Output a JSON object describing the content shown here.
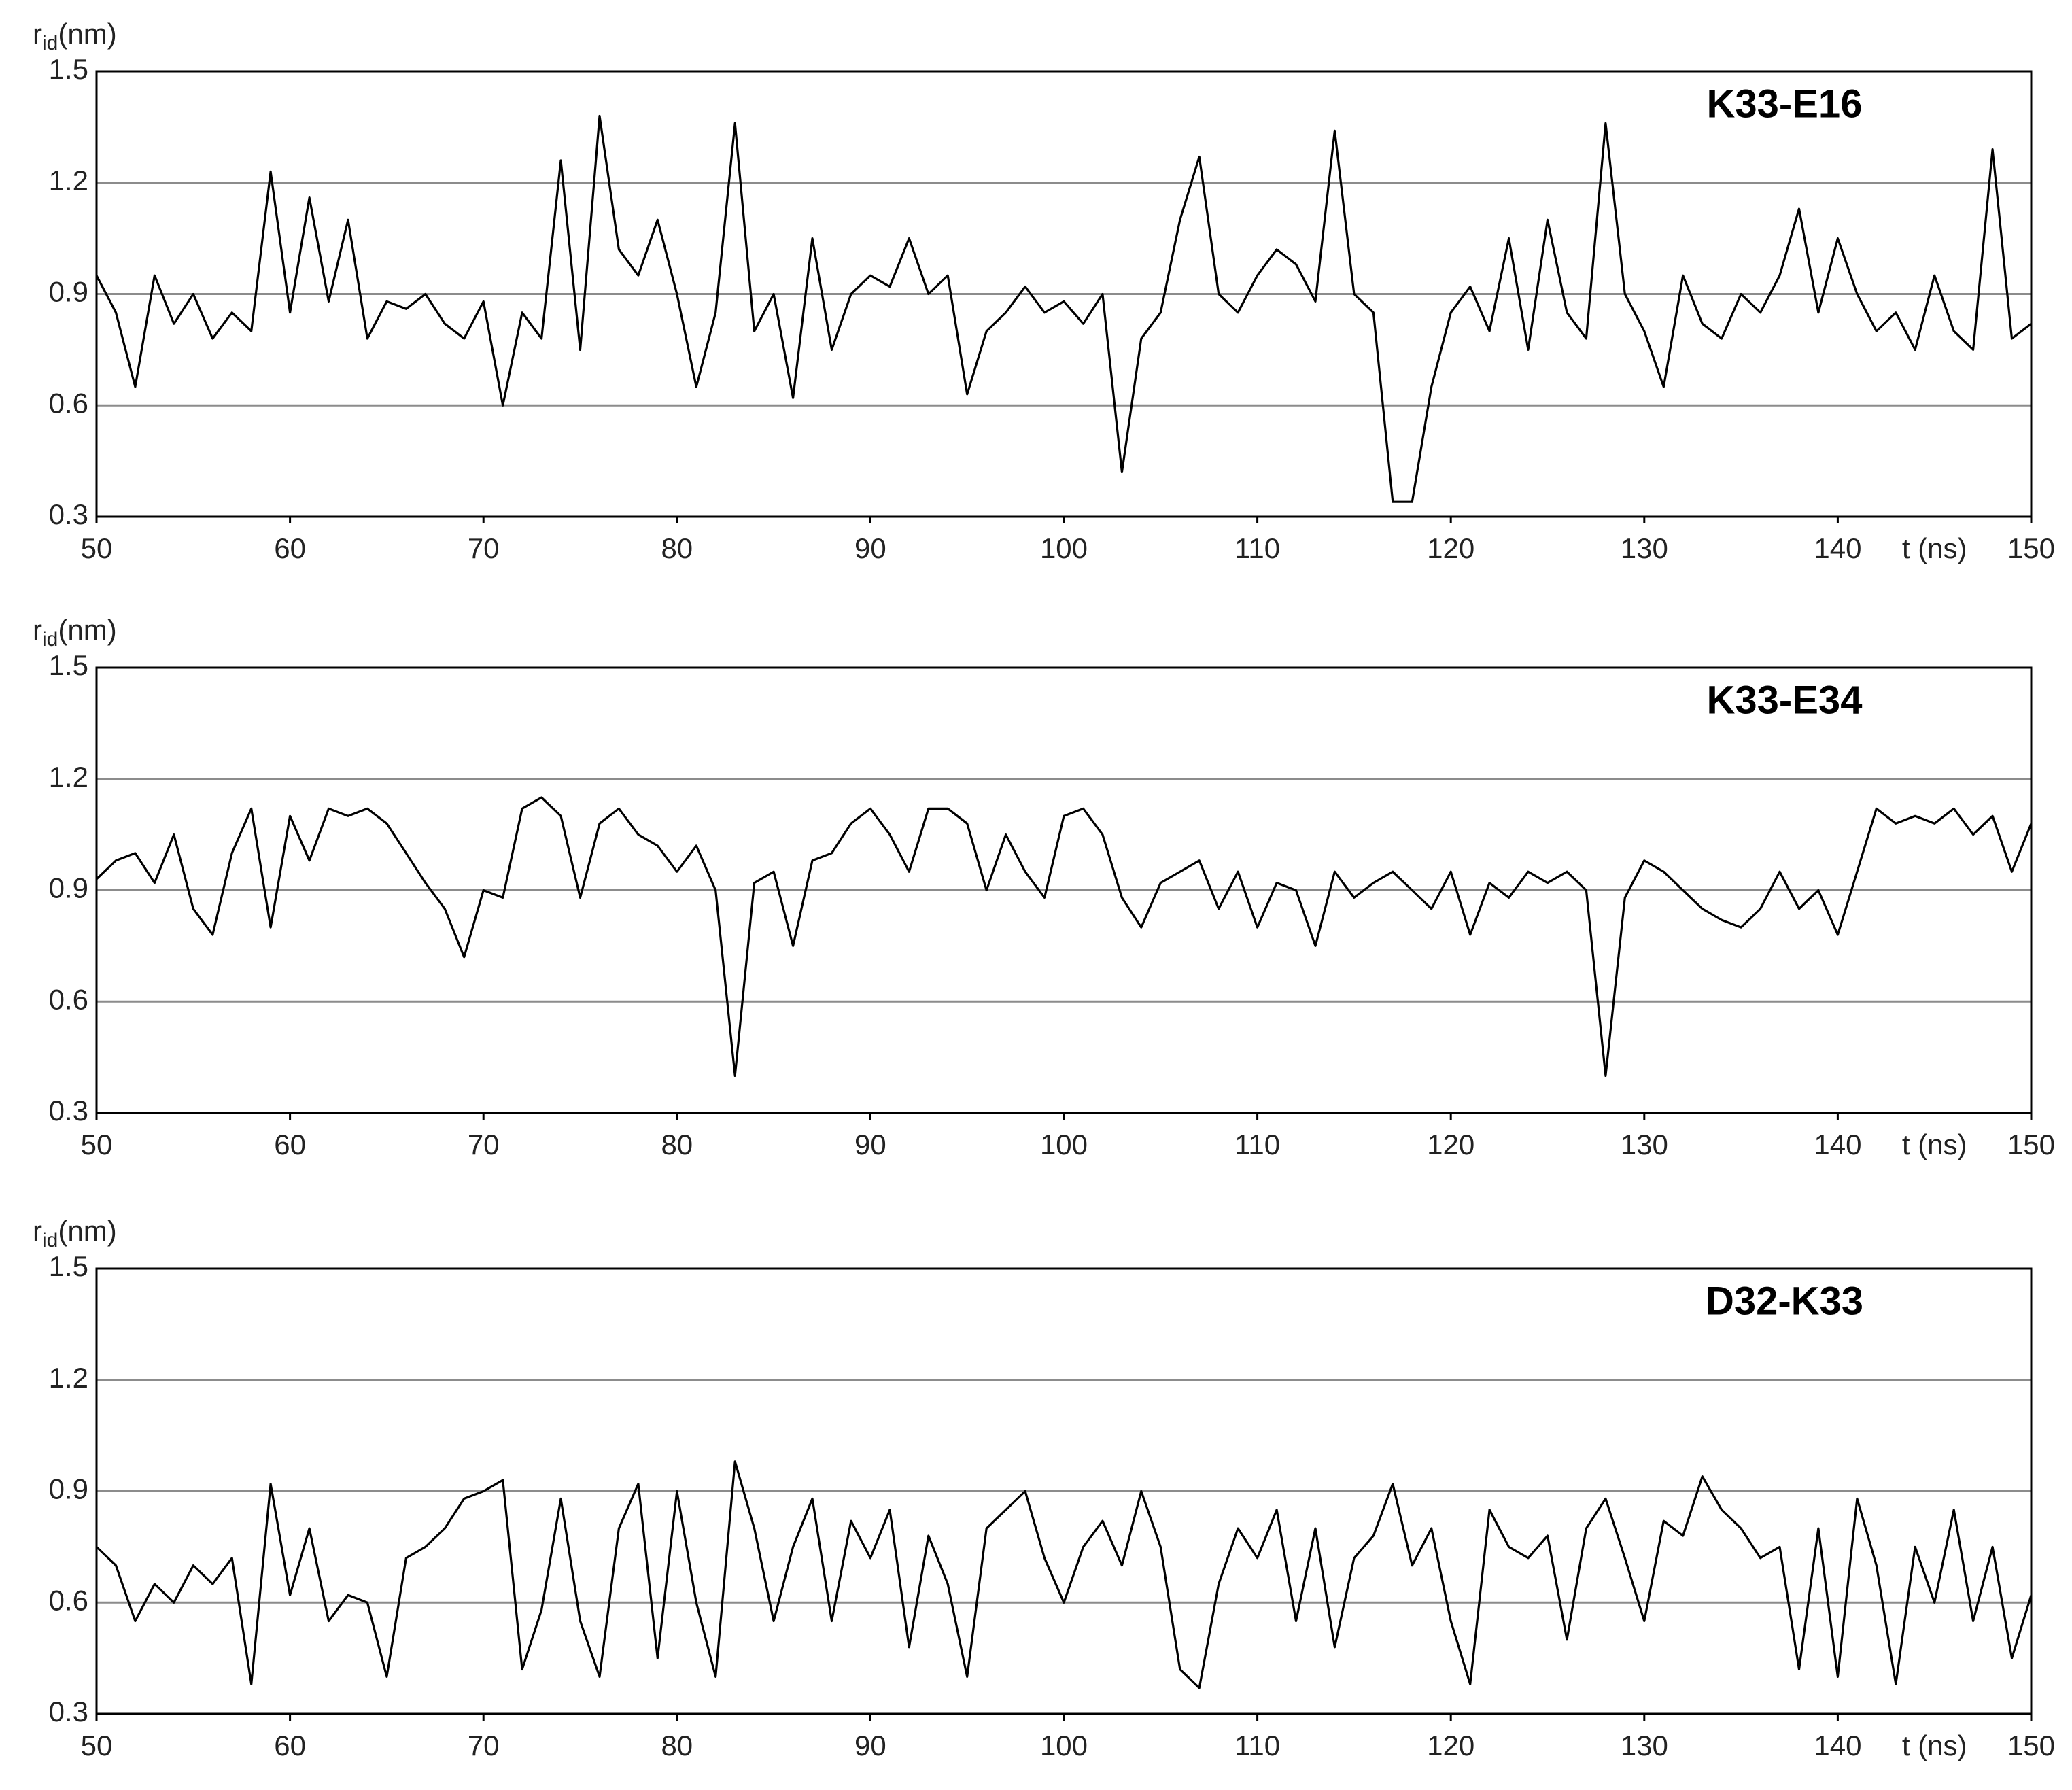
{
  "chart_data": [
    {
      "type": "line",
      "title": "K33-E16",
      "ylabel": "r",
      "ylabel_sub": "id",
      "ylabel_unit": "(nm)",
      "xlabel": "t (ns)",
      "xlim": [
        50,
        150
      ],
      "xticks": [
        50,
        60,
        70,
        80,
        90,
        100,
        110,
        120,
        130,
        140,
        150
      ],
      "ylim": [
        0.3,
        1.5
      ],
      "yticks": [
        0.3,
        0.6,
        0.9,
        1.2,
        1.5
      ],
      "grid": true,
      "color": "#000000",
      "x": [
        50,
        51,
        52,
        53,
        54,
        55,
        56,
        57,
        58,
        59,
        60,
        61,
        62,
        63,
        64,
        65,
        66,
        67,
        68,
        69,
        70,
        71,
        72,
        73,
        74,
        75,
        76,
        77,
        78,
        79,
        80,
        81,
        82,
        83,
        84,
        85,
        86,
        87,
        88,
        89,
        90,
        91,
        92,
        93,
        94,
        95,
        96,
        97,
        98,
        99,
        100,
        101,
        102,
        103,
        104,
        105,
        106,
        107,
        108,
        109,
        110,
        111,
        112,
        113,
        114,
        115,
        116,
        117,
        118,
        119,
        120,
        121,
        122,
        123,
        124,
        125,
        126,
        127,
        128,
        129,
        130,
        131,
        132,
        133,
        134,
        135,
        136,
        137,
        138,
        139,
        140,
        141,
        142,
        143,
        144,
        145,
        146,
        147,
        148,
        149,
        150
      ],
      "values": [
        0.95,
        0.85,
        0.65,
        0.95,
        0.82,
        0.9,
        0.78,
        0.85,
        0.8,
        1.23,
        0.85,
        1.16,
        0.88,
        1.1,
        0.78,
        0.88,
        0.86,
        0.9,
        0.82,
        0.78,
        0.88,
        0.6,
        0.85,
        0.78,
        1.26,
        0.75,
        1.38,
        1.02,
        0.95,
        1.1,
        0.9,
        0.65,
        0.85,
        1.36,
        0.8,
        0.9,
        0.62,
        1.05,
        0.75,
        0.9,
        0.95,
        0.92,
        1.05,
        0.9,
        0.95,
        0.63,
        0.8,
        0.85,
        0.92,
        0.85,
        0.88,
        0.82,
        0.9,
        0.42,
        0.78,
        0.85,
        1.1,
        1.27,
        0.9,
        0.85,
        0.95,
        1.02,
        0.98,
        0.88,
        1.34,
        0.9,
        0.85,
        0.34,
        0.34,
        0.65,
        0.85,
        0.92,
        0.8,
        1.05,
        0.75,
        1.1,
        0.85,
        0.78,
        1.36,
        0.9,
        0.8,
        0.65,
        0.95,
        0.82,
        0.78,
        0.9,
        0.85,
        0.95,
        1.13,
        0.85,
        1.05,
        0.9,
        0.8,
        0.85,
        0.75,
        0.95,
        0.8,
        0.75,
        1.29,
        0.78,
        0.82
      ]
    },
    {
      "type": "line",
      "title": "K33-E34",
      "ylabel": "r",
      "ylabel_sub": "id",
      "ylabel_unit": "(nm)",
      "xlabel": "t (ns)",
      "xlim": [
        50,
        150
      ],
      "xticks": [
        50,
        60,
        70,
        80,
        90,
        100,
        110,
        120,
        130,
        140,
        150
      ],
      "ylim": [
        0.3,
        1.5
      ],
      "yticks": [
        0.3,
        0.6,
        0.9,
        1.2,
        1.5
      ],
      "grid": true,
      "color": "#000000",
      "x": [
        50,
        51,
        52,
        53,
        54,
        55,
        56,
        57,
        58,
        59,
        60,
        61,
        62,
        63,
        64,
        65,
        66,
        67,
        68,
        69,
        70,
        71,
        72,
        73,
        74,
        75,
        76,
        77,
        78,
        79,
        80,
        81,
        82,
        83,
        84,
        85,
        86,
        87,
        88,
        89,
        90,
        91,
        92,
        93,
        94,
        95,
        96,
        97,
        98,
        99,
        100,
        101,
        102,
        103,
        104,
        105,
        106,
        107,
        108,
        109,
        110,
        111,
        112,
        113,
        114,
        115,
        116,
        117,
        118,
        119,
        120,
        121,
        122,
        123,
        124,
        125,
        126,
        127,
        128,
        129,
        130,
        131,
        132,
        133,
        134,
        135,
        136,
        137,
        138,
        139,
        140,
        141,
        142,
        143,
        144,
        145,
        146,
        147,
        148,
        149,
        150
      ],
      "values": [
        0.93,
        0.98,
        1.0,
        0.92,
        1.05,
        0.85,
        0.78,
        1.0,
        1.12,
        0.8,
        1.1,
        0.98,
        1.12,
        1.1,
        1.12,
        1.08,
        1.0,
        0.92,
        0.85,
        0.72,
        0.9,
        0.88,
        1.12,
        1.15,
        1.1,
        0.88,
        1.08,
        1.12,
        1.05,
        1.02,
        0.95,
        1.02,
        0.9,
        0.4,
        0.92,
        0.95,
        0.75,
        0.98,
        1.0,
        1.08,
        1.12,
        1.05,
        0.95,
        1.12,
        1.12,
        1.08,
        0.9,
        1.05,
        0.95,
        0.88,
        1.1,
        1.12,
        1.05,
        0.88,
        0.8,
        0.92,
        0.95,
        0.98,
        0.85,
        0.95,
        0.8,
        0.92,
        0.9,
        0.75,
        0.95,
        0.88,
        0.92,
        0.95,
        0.9,
        0.85,
        0.95,
        0.78,
        0.92,
        0.88,
        0.95,
        0.92,
        0.95,
        0.9,
        0.4,
        0.88,
        0.98,
        0.95,
        0.9,
        0.85,
        0.82,
        0.8,
        0.85,
        0.95,
        0.85,
        0.9,
        0.78,
        0.95,
        1.12,
        1.08,
        1.1,
        1.08,
        1.12,
        1.05,
        1.1,
        0.95,
        1.08
      ]
    },
    {
      "type": "line",
      "title": "D32-K33",
      "ylabel": "r",
      "ylabel_sub": "id",
      "ylabel_unit": "(nm)",
      "xlabel": "t (ns)",
      "xlim": [
        50,
        150
      ],
      "xticks": [
        50,
        60,
        70,
        80,
        90,
        100,
        110,
        120,
        130,
        140,
        150
      ],
      "ylim": [
        0.3,
        1.5
      ],
      "yticks": [
        0.3,
        0.6,
        0.9,
        1.2,
        1.5
      ],
      "grid": true,
      "color": "#000000",
      "x": [
        50,
        51,
        52,
        53,
        54,
        55,
        56,
        57,
        58,
        59,
        60,
        61,
        62,
        63,
        64,
        65,
        66,
        67,
        68,
        69,
        70,
        71,
        72,
        73,
        74,
        75,
        76,
        77,
        78,
        79,
        80,
        81,
        82,
        83,
        84,
        85,
        86,
        87,
        88,
        89,
        90,
        91,
        92,
        93,
        94,
        95,
        96,
        97,
        98,
        99,
        100,
        101,
        102,
        103,
        104,
        105,
        106,
        107,
        108,
        109,
        110,
        111,
        112,
        113,
        114,
        115,
        116,
        117,
        118,
        119,
        120,
        121,
        122,
        123,
        124,
        125,
        126,
        127,
        128,
        129,
        130,
        131,
        132,
        133,
        134,
        135,
        136,
        137,
        138,
        139,
        140,
        141,
        142,
        143,
        144,
        145,
        146,
        147,
        148,
        149,
        150
      ],
      "values": [
        0.75,
        0.7,
        0.55,
        0.65,
        0.6,
        0.7,
        0.65,
        0.72,
        0.38,
        0.92,
        0.62,
        0.8,
        0.55,
        0.62,
        0.6,
        0.4,
        0.72,
        0.75,
        0.8,
        0.88,
        0.9,
        0.93,
        0.42,
        0.58,
        0.88,
        0.55,
        0.4,
        0.8,
        0.92,
        0.45,
        0.9,
        0.6,
        0.4,
        0.98,
        0.8,
        0.55,
        0.75,
        0.88,
        0.55,
        0.82,
        0.72,
        0.85,
        0.48,
        0.78,
        0.65,
        0.4,
        0.8,
        0.85,
        0.9,
        0.72,
        0.6,
        0.75,
        0.82,
        0.7,
        0.9,
        0.75,
        0.42,
        0.37,
        0.65,
        0.8,
        0.72,
        0.85,
        0.55,
        0.8,
        0.48,
        0.72,
        0.78,
        0.92,
        0.7,
        0.8,
        0.55,
        0.38,
        0.85,
        0.75,
        0.72,
        0.78,
        0.5,
        0.8,
        0.88,
        0.72,
        0.55,
        0.82,
        0.78,
        0.94,
        0.85,
        0.8,
        0.72,
        0.75,
        0.42,
        0.8,
        0.4,
        0.88,
        0.7,
        0.38,
        0.75,
        0.6,
        0.85,
        0.55,
        0.75,
        0.45,
        0.62
      ]
    }
  ]
}
